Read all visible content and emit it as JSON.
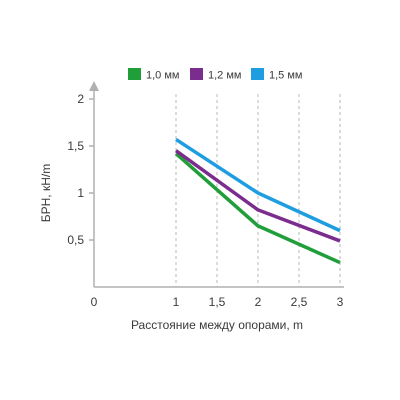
{
  "chart_data": {
    "type": "line",
    "xlabel": "Расстояние между опорами, m",
    "ylabel": "БРН, кН/m",
    "xlim": [
      0,
      3
    ],
    "ylim": [
      0,
      2
    ],
    "x_ticks": [
      {
        "value": 0,
        "label": "0"
      },
      {
        "value": 1,
        "label": "1"
      },
      {
        "value": 1.5,
        "label": "1,5"
      },
      {
        "value": 2,
        "label": "2"
      },
      {
        "value": 2.5,
        "label": "2,5"
      },
      {
        "value": 3,
        "label": "3"
      }
    ],
    "y_ticks": [
      {
        "value": 0.5,
        "label": "0,5"
      },
      {
        "value": 1,
        "label": "1"
      },
      {
        "value": 1.5,
        "label": "1,5"
      },
      {
        "value": 2,
        "label": "2"
      }
    ],
    "grid": "vertical-dashed",
    "legend_position": "top",
    "series": [
      {
        "name": "1,0 мм",
        "color": "#1f9e3a",
        "x": [
          1,
          2,
          3
        ],
        "y": [
          1.42,
          0.65,
          0.26
        ]
      },
      {
        "name": "1,2 мм",
        "color": "#7b2d8e",
        "x": [
          1,
          2,
          3
        ],
        "y": [
          1.45,
          0.82,
          0.49
        ]
      },
      {
        "name": "1,5 мм",
        "color": "#1e9ee0",
        "x": [
          1,
          2,
          3
        ],
        "y": [
          1.57,
          1.0,
          0.6
        ]
      }
    ]
  }
}
